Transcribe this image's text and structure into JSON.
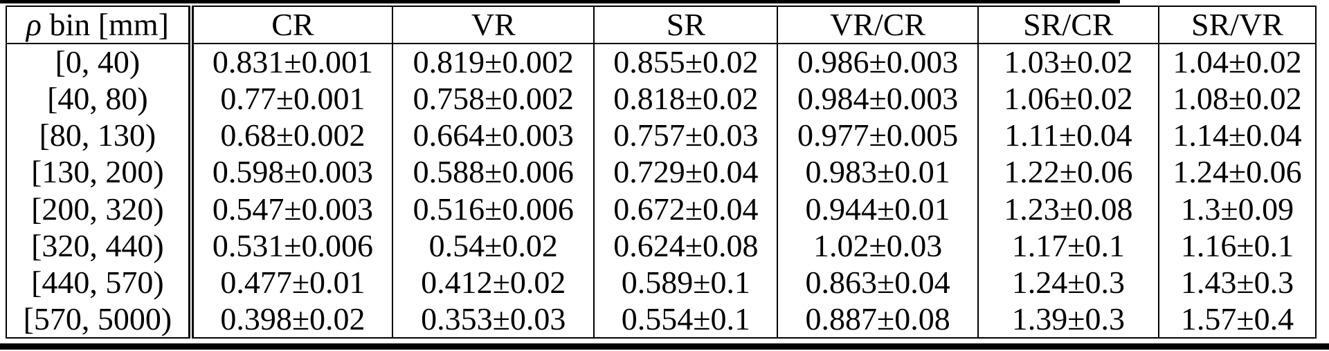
{
  "page": {
    "background_color": "#ffffff",
    "rule_color": "#000000",
    "text_color": "#000000"
  },
  "table": {
    "rho_header": {
      "symbol": "ρ",
      "rest": " bin [mm]"
    },
    "value_columns": [
      "CR",
      "VR",
      "SR",
      "VR/CR",
      "SR/CR",
      "SR/VR"
    ],
    "rows": [
      {
        "bin": "[0, 40)",
        "values": [
          "0.831±0.001",
          "0.819±0.002",
          "0.855±0.02",
          "0.986±0.003",
          "1.03±0.02",
          "1.04±0.02"
        ]
      },
      {
        "bin": "[40, 80)",
        "values": [
          "0.77±0.001",
          "0.758±0.002",
          "0.818±0.02",
          "0.984±0.003",
          "1.06±0.02",
          "1.08±0.02"
        ]
      },
      {
        "bin": "[80, 130)",
        "values": [
          "0.68±0.002",
          "0.664±0.003",
          "0.757±0.03",
          "0.977±0.005",
          "1.11±0.04",
          "1.14±0.04"
        ]
      },
      {
        "bin": "[130, 200)",
        "values": [
          "0.598±0.003",
          "0.588±0.006",
          "0.729±0.04",
          "0.983±0.01",
          "1.22±0.06",
          "1.24±0.06"
        ]
      },
      {
        "bin": "[200, 320)",
        "values": [
          "0.547±0.003",
          "0.516±0.006",
          "0.672±0.04",
          "0.944±0.01",
          "1.23±0.08",
          "1.3±0.09"
        ]
      },
      {
        "bin": "[320, 440)",
        "values": [
          "0.531±0.006",
          "0.54±0.02",
          "0.624±0.08",
          "1.02±0.03",
          "1.17±0.1",
          "1.16±0.1"
        ]
      },
      {
        "bin": "[440, 570)",
        "values": [
          "0.477±0.01",
          "0.412±0.02",
          "0.589±0.1",
          "0.863±0.04",
          "1.24±0.3",
          "1.43±0.3"
        ]
      },
      {
        "bin": "[570, 5000)",
        "values": [
          "0.398±0.02",
          "0.353±0.03",
          "0.554±0.1",
          "0.887±0.08",
          "1.39±0.3",
          "1.57±0.4"
        ]
      }
    ]
  }
}
